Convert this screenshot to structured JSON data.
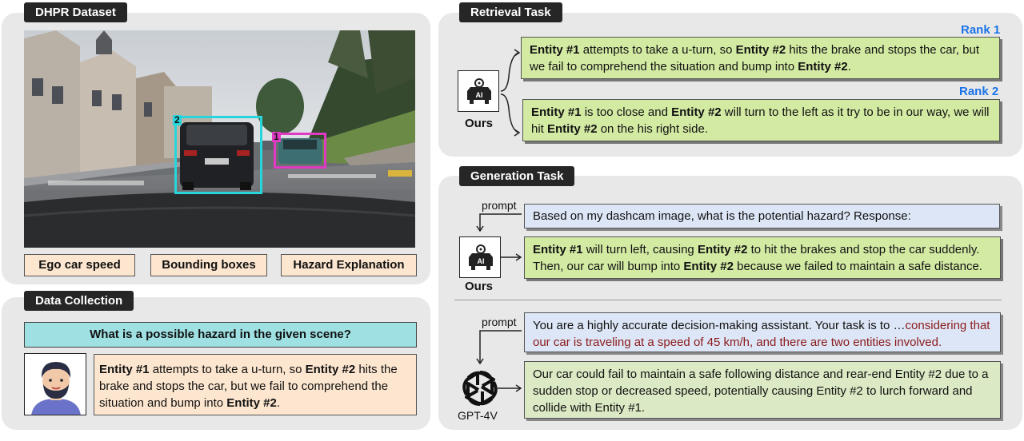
{
  "left": {
    "dataset_title": "DHPR Dataset",
    "box_labels": [
      "2",
      "1"
    ],
    "features": [
      "Ego car speed",
      "Bounding boxes",
      "Hazard Explanation"
    ],
    "collection_title": "Data Collection",
    "question": "What is a possible hazard in the given scene?",
    "answer": {
      "e1": "Entity #1",
      "t1": " attempts to take a u-turn, so ",
      "e2": "Entity #2",
      "t2": " hits the brake and stops the car, but we fail to comprehend the situation and bump into ",
      "e3": "Entity #2",
      "t3": "."
    }
  },
  "retrieval": {
    "title": "Retrieval Task",
    "rank1": "Rank 1",
    "rank2": "Rank 2",
    "ai_icon_text": "AI",
    "model_label": "Ours",
    "r1": {
      "e1": "Entity #1",
      "t1": " attempts to take a u-turn, so ",
      "e2": "Entity #2",
      "t2": " hits the brake and stops the car, but we fail to comprehend the situation and bump into ",
      "e3": "Entity #2",
      "t3": "."
    },
    "r2": {
      "e1": "Entity #1",
      "t1": " is too close and ",
      "e2": "Entity #2",
      "t2": " will turn to the left as it try to be in our way, we will hit  ",
      "e3": "Entity #2",
      "t3": " on the his right side."
    }
  },
  "generation": {
    "title": "Generation Task",
    "prompt_label": "prompt",
    "model_label": "Ours",
    "ai_icon_text": "AI",
    "prompt1": "Based on my dashcam image, what is the potential hazard? Response:",
    "resp1": {
      "e1": "Entity #1",
      "t1": " will turn left, causing ",
      "e2": "Entity #2",
      "t2": " to hit the brakes and stop the car suddenly. Then, our car will bump into ",
      "e3": "Entity #2",
      "t3": " because we failed to maintain a safe distance."
    },
    "prompt2_label": "prompt",
    "prompt2_a": "You are a highly accurate decision-making assistant. Your task is to …",
    "prompt2_b": "considering that our car is traveling at a speed of 45 km/h, and there are two entities involved.",
    "gpt_label": "GPT-4V",
    "resp2": "Our car could fail to maintain a safe following distance and rear-end Entity #2 due to a sudden stop or decreased speed, potentially causing Entity #2 to lurch forward and collide with Entity #1."
  },
  "colors": {
    "panel": "#e8e8e8",
    "rank": "#1a73e8",
    "green_box": "#d3eaa3",
    "blue_box": "#dde6f6",
    "peach_box": "#fde6cf",
    "question_box": "#9fe0e3",
    "bbox_cyan": "#27d5dc",
    "bbox_magenta": "#e03ac4"
  }
}
